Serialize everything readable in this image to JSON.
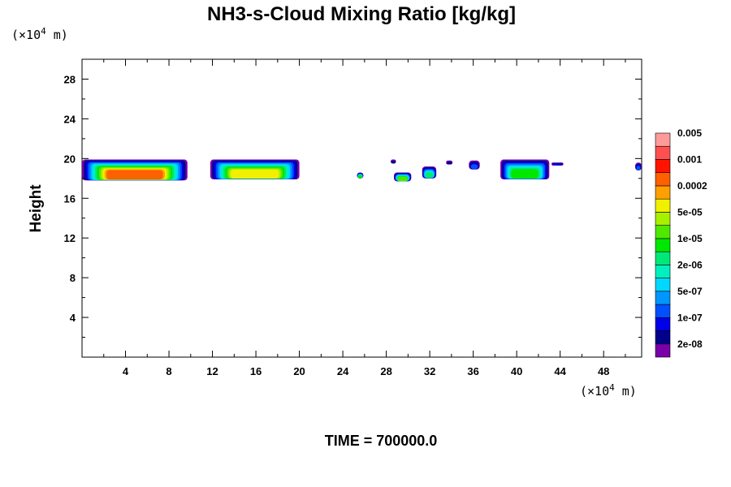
{
  "chart_data": {
    "type": "heatmap",
    "title": "NH3-s-Cloud Mixing Ratio [kg/kg]",
    "ylabel": "Height",
    "xlabel": "",
    "x_unit_prefix": "(×10",
    "x_unit_exp": "4",
    "x_unit_suffix": " m)",
    "y_unit_prefix": "(×10",
    "y_unit_exp": "4",
    "y_unit_suffix": " m)",
    "xlim": [
      0,
      51.5
    ],
    "ylim": [
      0,
      30
    ],
    "x_ticks": [
      4,
      8,
      12,
      16,
      20,
      24,
      28,
      32,
      36,
      40,
      44,
      48
    ],
    "y_ticks": [
      4,
      8,
      12,
      16,
      20,
      24,
      28
    ],
    "time_label": "TIME = 700000.0",
    "colorbar": {
      "colors": [
        "#7a00a8",
        "#00008b",
        "#0000e8",
        "#0050ff",
        "#0096ff",
        "#00d8ff",
        "#00f0c0",
        "#00e878",
        "#00e800",
        "#50e800",
        "#a8f000",
        "#f0f000",
        "#ffa000",
        "#ff6000",
        "#ff1400",
        "#ff5050",
        "#ff9a9a"
      ],
      "labels": [
        "2e-08",
        "1e-07",
        "5e-07",
        "2e-06",
        "1e-05",
        "5e-05",
        "0.0002",
        "0.001",
        "0.005"
      ]
    },
    "cloud_patches": [
      {
        "x": [
          0,
          9.7
        ],
        "y": [
          17.8,
          19.9
        ],
        "max_level": 13
      },
      {
        "x": [
          11.8,
          20.0
        ],
        "y": [
          17.9,
          19.9
        ],
        "max_level": 11
      },
      {
        "x": [
          25.3,
          25.9
        ],
        "y": [
          18.0,
          18.6
        ],
        "max_level": 8
      },
      {
        "x": [
          28.4,
          28.9
        ],
        "y": [
          19.5,
          19.9
        ],
        "max_level": 1
      },
      {
        "x": [
          28.7,
          30.3
        ],
        "y": [
          17.7,
          18.6
        ],
        "max_level": 9
      },
      {
        "x": [
          31.3,
          32.6
        ],
        "y": [
          18.0,
          19.2
        ],
        "max_level": 7
      },
      {
        "x": [
          33.5,
          34.1
        ],
        "y": [
          19.4,
          19.8
        ],
        "max_level": 1
      },
      {
        "x": [
          35.6,
          36.6
        ],
        "y": [
          18.9,
          19.8
        ],
        "max_level": 3
      },
      {
        "x": [
          38.5,
          43.0
        ],
        "y": [
          17.9,
          19.9
        ],
        "max_level": 8
      },
      {
        "x": [
          43.2,
          44.3
        ],
        "y": [
          19.3,
          19.6
        ],
        "max_level": 2
      },
      {
        "x": [
          50.9,
          51.5
        ],
        "y": [
          18.8,
          19.6
        ],
        "max_level": 3
      }
    ]
  }
}
